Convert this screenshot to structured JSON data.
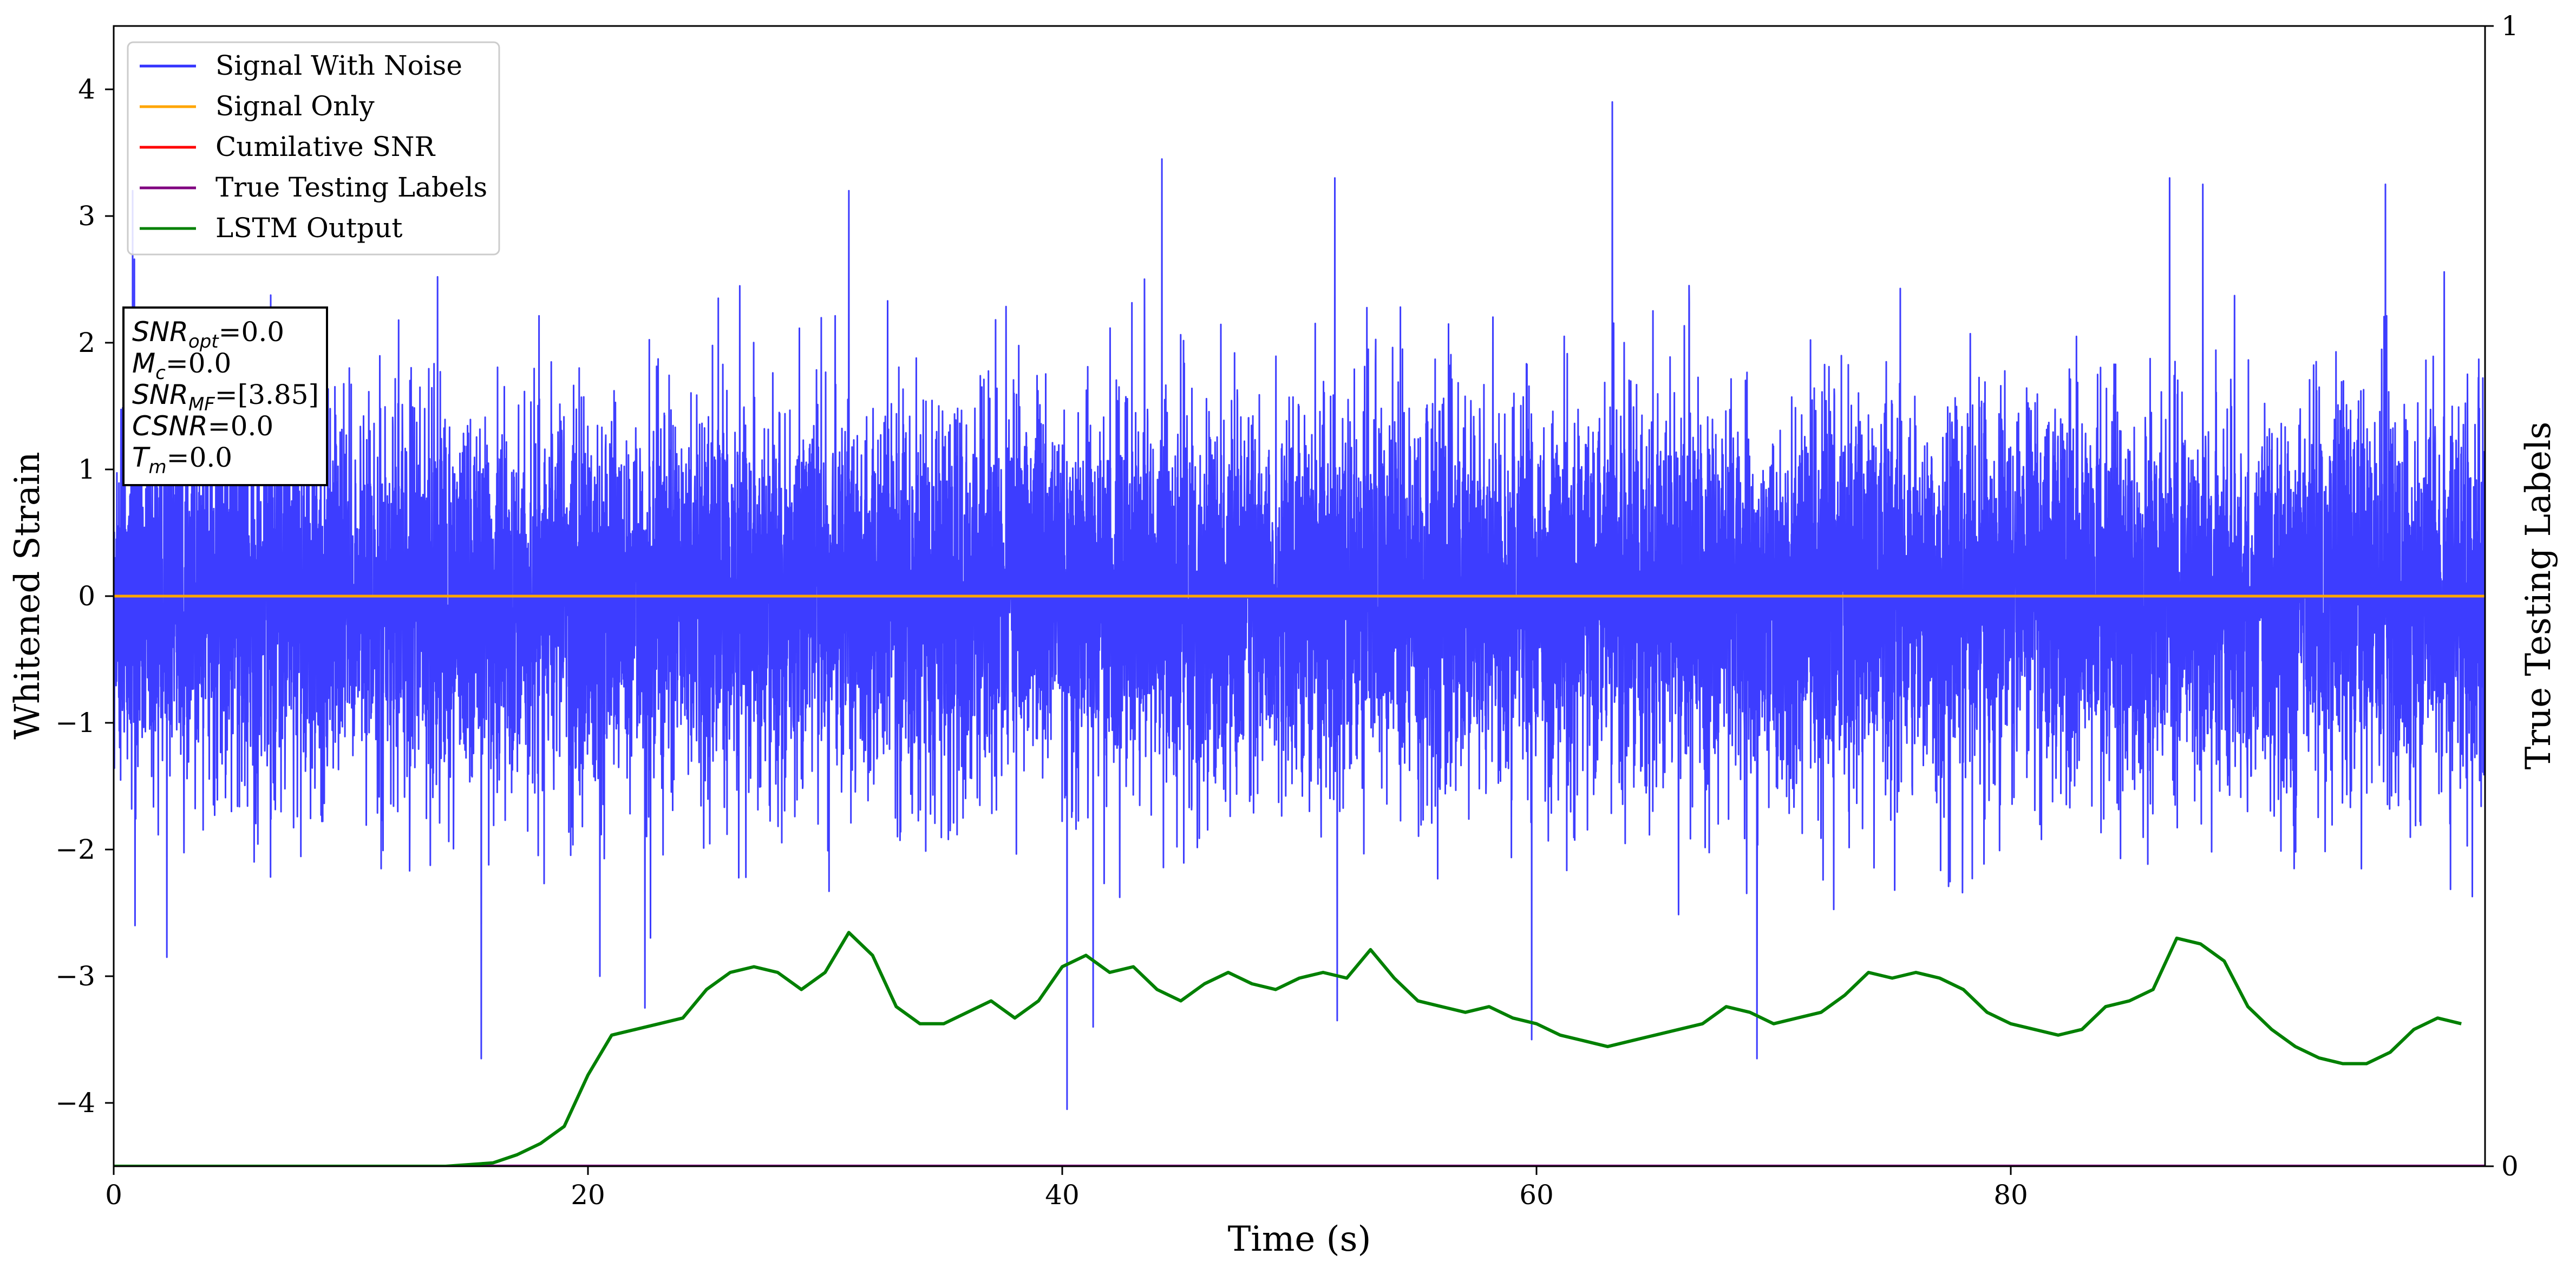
{
  "chart_data": {
    "type": "line",
    "xlabel": "Time (s)",
    "ylabel": "Whitened Strain",
    "ylabel_right": "True Testing Labels",
    "xlim": [
      0,
      100
    ],
    "ylim": [
      -4.5,
      4.5
    ],
    "ylim_right": [
      0,
      1
    ],
    "xticks": [
      0,
      20,
      40,
      60,
      80
    ],
    "xtick_labels": [
      "0",
      "20",
      "40",
      "60",
      "80"
    ],
    "yticks": [
      -4,
      -3,
      -2,
      -1,
      0,
      1,
      2,
      3,
      4
    ],
    "ytick_labels": [
      "−4",
      "−3",
      "−2",
      "−1",
      "0",
      "1",
      "2",
      "3",
      "4"
    ],
    "yticks_right": [
      0,
      1
    ],
    "ytick_labels_right": [
      "0",
      "1"
    ],
    "grid": false,
    "legend_position": "top-left",
    "series": [
      {
        "name": "Signal With Noise",
        "color": "#3333ff",
        "axis": "left",
        "description": "Gaussian-like whitened noise across 0-100 s, bulk within about ±1, peaks to about ±3.9",
        "typical_abs": 1.0,
        "min": -4.05,
        "max": 3.9,
        "spikes": [
          {
            "x": 0.8,
            "y": 3.2
          },
          {
            "x": 0.9,
            "y": -2.6
          },
          {
            "x": 15.5,
            "y": -3.65
          },
          {
            "x": 22.4,
            "y": -3.25
          },
          {
            "x": 20.5,
            "y": -3.0
          },
          {
            "x": 31.0,
            "y": 3.2
          },
          {
            "x": 40.2,
            "y": -4.05
          },
          {
            "x": 41.3,
            "y": -3.4
          },
          {
            "x": 44.2,
            "y": 3.45
          },
          {
            "x": 51.5,
            "y": 3.3
          },
          {
            "x": 51.6,
            "y": -3.35
          },
          {
            "x": 59.8,
            "y": -3.5
          },
          {
            "x": 63.2,
            "y": 3.9
          },
          {
            "x": 69.3,
            "y": -3.65
          },
          {
            "x": 86.7,
            "y": 3.3
          },
          {
            "x": 88.1,
            "y": 3.25
          },
          {
            "x": 95.8,
            "y": 3.25
          }
        ]
      },
      {
        "name": "Signal Only",
        "color": "#ffa500",
        "axis": "left",
        "x": [
          0,
          100
        ],
        "y": [
          0,
          0
        ]
      },
      {
        "name": "Cumilative SNR",
        "color": "#ff0000",
        "axis": "left",
        "x": [],
        "y": []
      },
      {
        "name": "True Testing Labels",
        "color": "#800080",
        "axis": "right",
        "x": [
          0,
          100
        ],
        "y": [
          0,
          0
        ]
      },
      {
        "name": "LSTM Output",
        "color": "#008000",
        "axis": "right",
        "x": [
          0,
          14,
          16,
          17,
          18,
          19,
          20,
          21,
          22,
          23,
          24,
          25,
          26,
          27,
          28,
          29,
          30,
          31,
          32,
          33,
          34,
          35,
          36,
          37,
          38,
          39,
          40,
          41,
          42,
          43,
          44,
          45,
          46,
          47,
          48,
          49,
          50,
          51,
          52,
          53,
          54,
          55,
          56,
          57,
          58,
          59,
          60,
          61,
          62,
          63,
          64,
          65,
          66,
          67,
          68,
          69,
          70,
          71,
          72,
          73,
          74,
          75,
          76,
          77,
          78,
          79,
          80,
          81,
          82,
          83,
          84,
          85,
          86,
          87,
          88,
          89,
          90,
          91,
          92,
          93,
          94,
          95,
          96,
          97,
          98,
          99
        ],
        "y": [
          0.0,
          0.0,
          0.003,
          0.01,
          0.02,
          0.035,
          0.08,
          0.115,
          0.12,
          0.125,
          0.13,
          0.155,
          0.17,
          0.175,
          0.17,
          0.155,
          0.17,
          0.205,
          0.185,
          0.14,
          0.125,
          0.125,
          0.135,
          0.145,
          0.13,
          0.145,
          0.175,
          0.185,
          0.17,
          0.175,
          0.155,
          0.145,
          0.16,
          0.17,
          0.16,
          0.155,
          0.165,
          0.17,
          0.165,
          0.19,
          0.165,
          0.145,
          0.14,
          0.135,
          0.14,
          0.13,
          0.125,
          0.115,
          0.11,
          0.105,
          0.11,
          0.115,
          0.12,
          0.125,
          0.14,
          0.135,
          0.125,
          0.13,
          0.135,
          0.15,
          0.17,
          0.165,
          0.17,
          0.165,
          0.155,
          0.135,
          0.125,
          0.12,
          0.115,
          0.12,
          0.14,
          0.145,
          0.155,
          0.2,
          0.195,
          0.18,
          0.14,
          0.12,
          0.105,
          0.095,
          0.09,
          0.09,
          0.1,
          0.12,
          0.13,
          0.125
        ]
      }
    ],
    "annotation_box": {
      "lines": [
        {
          "main": "SNR",
          "sub": "opt",
          "rest": "=0.0"
        },
        {
          "main": "M",
          "sub": "c",
          "rest": "=0.0"
        },
        {
          "main": "SNR",
          "sub": "MF",
          "rest": "=[3.85]"
        },
        {
          "main": "CSNR",
          "sub": "",
          "rest": "=0.0"
        },
        {
          "main": "T",
          "sub": "m",
          "rest": "=0.0"
        }
      ]
    }
  }
}
